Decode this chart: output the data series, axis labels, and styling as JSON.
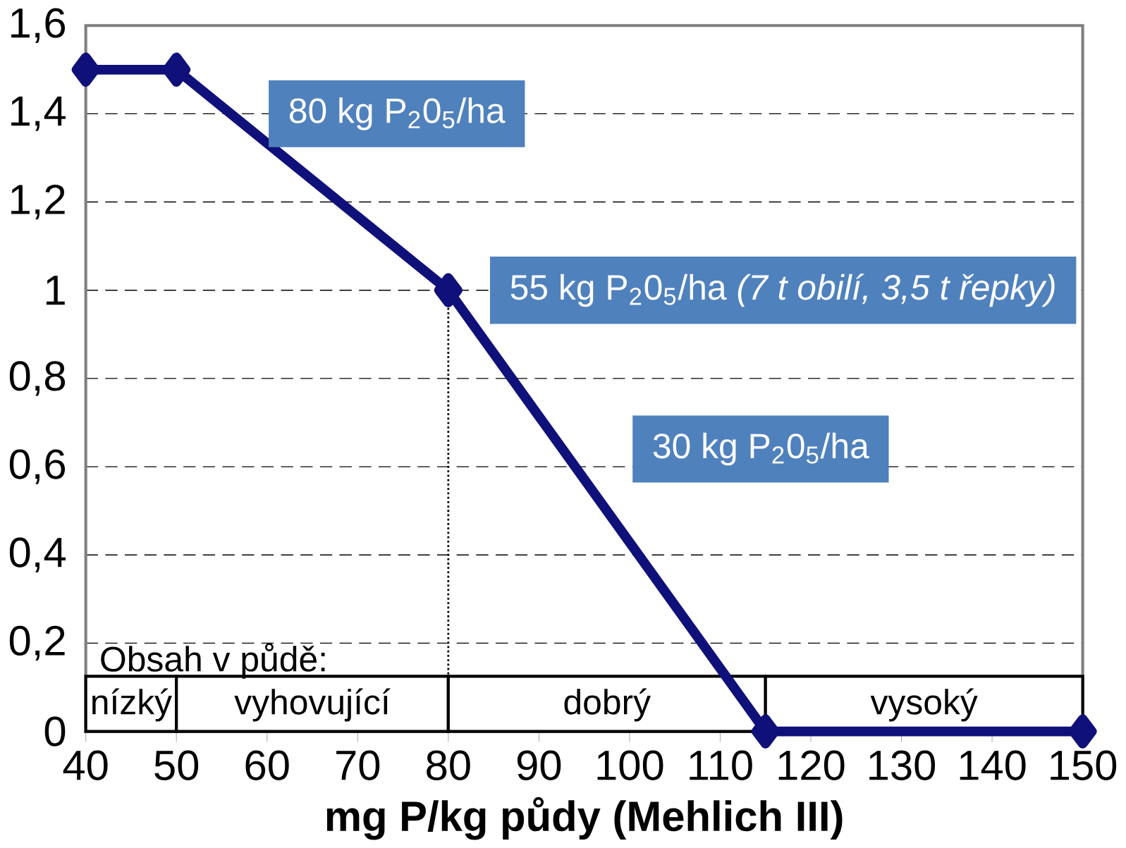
{
  "chart_data": {
    "type": "line",
    "xlabel": "mg P/kg půdy (Mehlich III)",
    "x": [
      40,
      50,
      80,
      115,
      150
    ],
    "series": [
      {
        "color": "#10107a",
        "values": [
          1.5,
          1.5,
          1.0,
          0,
          0
        ]
      }
    ],
    "marker": "diamond",
    "line_style": "solid",
    "grid": "y",
    "xlim": [
      40,
      150
    ],
    "xticks": [
      40,
      50,
      60,
      70,
      80,
      90,
      100,
      110,
      120,
      130,
      140,
      150
    ],
    "ylim": [
      0,
      1.6
    ],
    "yticks": [
      0,
      {
        "value": 0.2,
        "label": "0,2"
      },
      {
        "value": 0.4,
        "label": "0,4"
      },
      {
        "value": 0.6,
        "label": "0,6"
      },
      {
        "value": 0.8,
        "label": "0,8"
      },
      1,
      {
        "value": 1.2,
        "label": "1,2"
      },
      {
        "value": 1.4,
        "label": "1,4"
      },
      {
        "value": 1.6,
        "label": "1,6"
      }
    ],
    "ref_lines": [
      {
        "axis": "x",
        "value": 80,
        "line_style": "dotted"
      }
    ],
    "bands": [
      {
        "axis": "x",
        "from": 40,
        "to": 50,
        "label": "nízký",
        "color": "#ffffff"
      },
      {
        "axis": "x",
        "from": 50,
        "to": 80,
        "label": "vyhovující",
        "color": "#ffffff"
      },
      {
        "axis": "x",
        "from": 80,
        "to": 115,
        "label": "dobrý",
        "color": "#ffffff"
      },
      {
        "axis": "x",
        "from": 115,
        "to": 150,
        "label": "vysoký",
        "color": "#ffffff"
      }
    ],
    "annotations": [
      "80 kg P$_{2}$0$_{5}$/ha",
      "55 kg P$_{2}$0$_{5}$/ha *(7 t obilí, 3,5 t řepky)*",
      "30 kg P$_{2}$0$_{5}$/ha",
      "Obsah v půdě:"
    ]
  }
}
